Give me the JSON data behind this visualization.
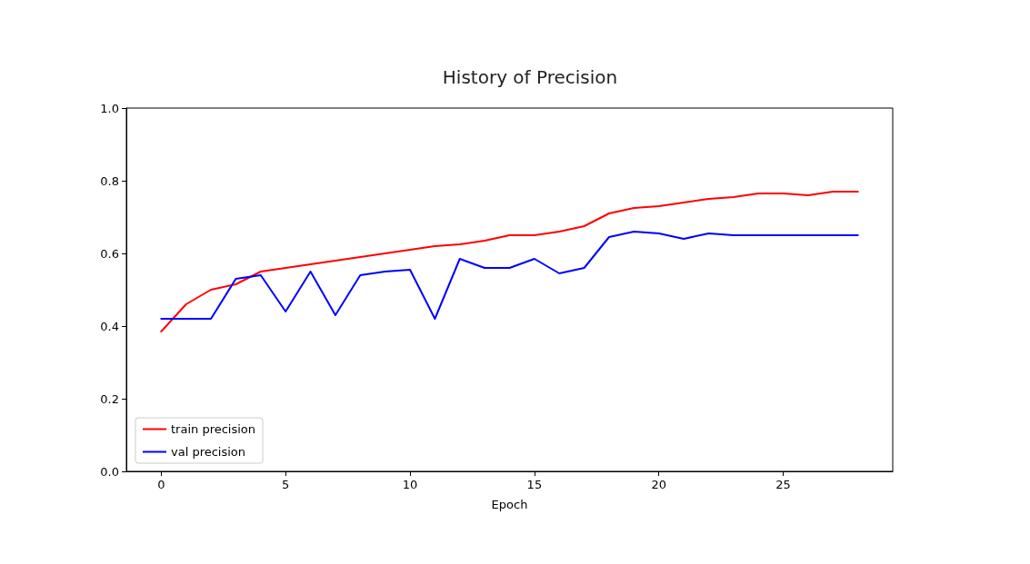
{
  "chart_data": {
    "type": "line",
    "title": "History of Precision",
    "xlabel": "Epoch",
    "x": [
      0,
      1,
      2,
      3,
      4,
      5,
      6,
      7,
      8,
      9,
      10,
      11,
      12,
      13,
      14,
      15,
      16,
      17,
      18,
      19,
      20,
      21,
      22,
      23,
      24,
      25,
      26,
      27,
      28
    ],
    "series": [
      {
        "name": "train precision",
        "color": "#ff0000",
        "values": [
          0.385,
          0.46,
          0.5,
          0.515,
          0.55,
          0.56,
          0.57,
          0.58,
          0.59,
          0.6,
          0.61,
          0.62,
          0.625,
          0.635,
          0.65,
          0.65,
          0.66,
          0.675,
          0.71,
          0.725,
          0.73,
          0.74,
          0.75,
          0.755,
          0.765,
          0.765,
          0.76,
          0.77,
          0.77
        ]
      },
      {
        "name": "val precision",
        "color": "#0000ff",
        "values": [
          0.42,
          0.42,
          0.42,
          0.53,
          0.54,
          0.44,
          0.55,
          0.43,
          0.54,
          0.55,
          0.555,
          0.42,
          0.585,
          0.56,
          0.56,
          0.585,
          0.545,
          0.56,
          0.645,
          0.66,
          0.655,
          0.64,
          0.655,
          0.65,
          0.65,
          0.65,
          0.65,
          0.65,
          0.65
        ]
      }
    ],
    "xlim": [
      -1.4,
      29.4
    ],
    "xticks": [
      0,
      5,
      10,
      15,
      20,
      25
    ],
    "ylim": [
      0,
      1
    ],
    "yticks": [
      {
        "value": 0,
        "label": "0.0"
      },
      0.2,
      0.4,
      0.6,
      0.8,
      {
        "value": 1,
        "label": "1.0"
      }
    ],
    "grid": false,
    "legend": "bottom left",
    "marker": "none",
    "line_style": "solid"
  }
}
